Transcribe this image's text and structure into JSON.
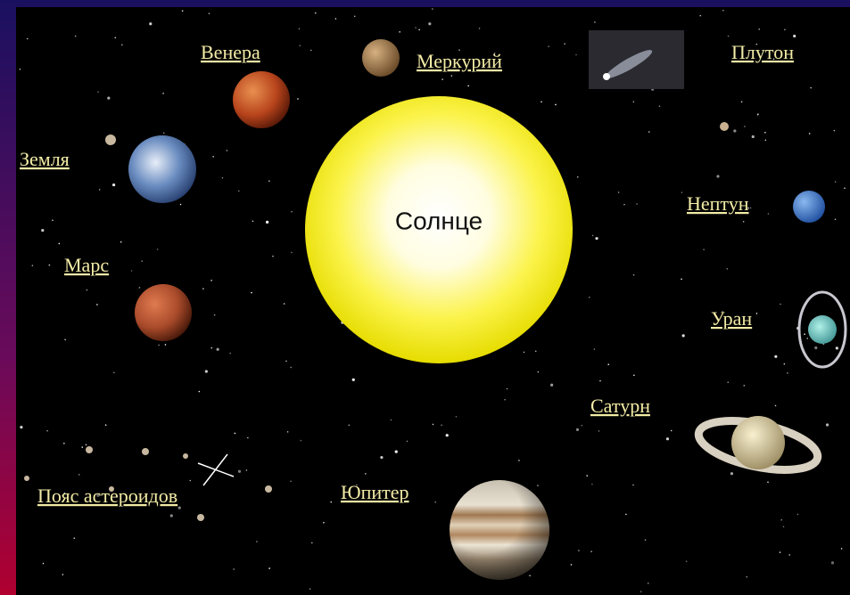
{
  "sun": {
    "label": "Солнце"
  },
  "objects": [
    {
      "label": "Венера"
    },
    {
      "label": "Меркурий"
    },
    {
      "label": "Плутон"
    },
    {
      "label": "Земля"
    },
    {
      "label": "Нептун"
    },
    {
      "label": "Марс"
    },
    {
      "label": "Уран"
    },
    {
      "label": "Сатурн"
    },
    {
      "label": "Юпитер"
    },
    {
      "label": "Пояс астероидов"
    }
  ]
}
